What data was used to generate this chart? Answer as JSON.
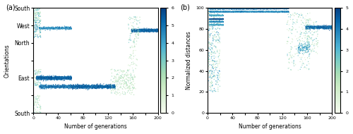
{
  "panel_a_label": "(a)",
  "panel_b_label": "(b)",
  "xlabel": "Number of generations",
  "ylabel_a": "Orientations",
  "ylabel_b": "Normalized distances",
  "yticks_a": [
    0,
    1,
    2,
    3,
    4,
    5,
    6
  ],
  "yticklabels_a": [
    "South",
    "",
    "East",
    "",
    "North",
    "West",
    "South"
  ],
  "yticks_b": [
    0,
    20,
    40,
    60,
    80,
    100
  ],
  "xticks": [
    0,
    20,
    40,
    60,
    80,
    100,
    120,
    140,
    160,
    180,
    200
  ],
  "colorbar_ticks_a": [
    0,
    1,
    2,
    3,
    4,
    5,
    6
  ],
  "colorbar_ticks_b": [
    0,
    1,
    2,
    3,
    4,
    5
  ],
  "cmap": "GnBu",
  "seed": 42
}
